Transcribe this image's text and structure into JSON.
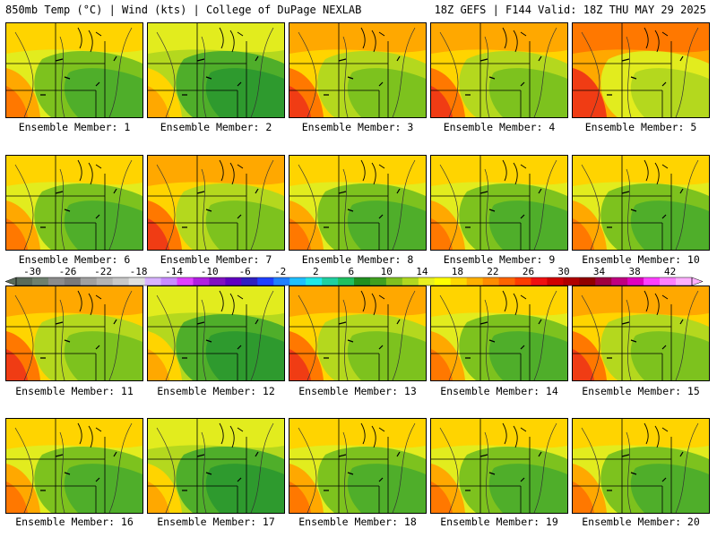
{
  "header": {
    "left": "850mb Temp (°C) | Wind (kts) | College of DuPage NEXLAB",
    "right": "18Z GEFS | F144 Valid: 18Z THU MAY 29 2025"
  },
  "label_prefix": "Ensemble Member: ",
  "members": [
    {
      "id": 1,
      "label": "Ensemble Member: 1",
      "warmth": 0.45
    },
    {
      "id": 2,
      "label": "Ensemble Member: 2",
      "warmth": 0.35
    },
    {
      "id": 3,
      "label": "Ensemble Member: 3",
      "warmth": 0.75
    },
    {
      "id": 4,
      "label": "Ensemble Member: 4",
      "warmth": 0.85
    },
    {
      "id": 5,
      "label": "Ensemble Member: 5",
      "warmth": 0.9
    },
    {
      "id": 6,
      "label": "Ensemble Member: 6",
      "warmth": 0.4
    },
    {
      "id": 7,
      "label": "Ensemble Member: 7",
      "warmth": 0.65
    },
    {
      "id": 8,
      "label": "Ensemble Member: 8",
      "warmth": 0.45
    },
    {
      "id": 9,
      "label": "Ensemble Member: 9",
      "warmth": 0.6
    },
    {
      "id": 10,
      "label": "Ensemble Member: 10",
      "warmth": 0.55
    },
    {
      "id": 11,
      "label": "Ensemble Member: 11",
      "warmth": 0.7
    },
    {
      "id": 12,
      "label": "Ensemble Member: 12",
      "warmth": 0.3
    },
    {
      "id": 13,
      "label": "Ensemble Member: 13",
      "warmth": 0.75
    },
    {
      "id": 14,
      "label": "Ensemble Member: 14",
      "warmth": 0.5
    },
    {
      "id": 15,
      "label": "Ensemble Member: 15",
      "warmth": 0.85
    },
    {
      "id": 16,
      "label": "Ensemble Member: 16",
      "warmth": 0.55
    },
    {
      "id": 17,
      "label": "Ensemble Member: 17",
      "warmth": 0.35
    },
    {
      "id": 18,
      "label": "Ensemble Member: 18",
      "warmth": 0.6
    },
    {
      "id": 19,
      "label": "Ensemble Member: 19",
      "warmth": 0.5
    },
    {
      "id": 20,
      "label": "Ensemble Member: 20",
      "warmth": 0.55
    }
  ],
  "colorbar": {
    "ticks": [
      "-30",
      "-26",
      "-22",
      "-18",
      "-14",
      "-10",
      "-6",
      "-2",
      "2",
      "6",
      "10",
      "14",
      "18",
      "22",
      "26",
      "30",
      "34",
      "38",
      "42"
    ],
    "colors": [
      "#5a6b5a",
      "#6e806e",
      "#8c8c8c",
      "#7a7a7a",
      "#a0a0a0",
      "#b4b4b4",
      "#c8c8c8",
      "#e0e0e0",
      "#d8b4ff",
      "#c88cff",
      "#e040ff",
      "#b020e0",
      "#8010c0",
      "#6000c0",
      "#3020c0",
      "#2040ff",
      "#2080ff",
      "#20c0ff",
      "#20e8e8",
      "#20d0a0",
      "#20c060",
      "#209020",
      "#40a020",
      "#80c020",
      "#b0d820",
      "#e8f020",
      "#ffff00",
      "#ffd800",
      "#ffb000",
      "#ff8c00",
      "#ff6400",
      "#ff3c00",
      "#f01010",
      "#d00000",
      "#b00000",
      "#900000",
      "#a00040",
      "#c00080",
      "#e000c0",
      "#ff40ff",
      "#ff80ff",
      "#ffb0ff"
    ]
  }
}
